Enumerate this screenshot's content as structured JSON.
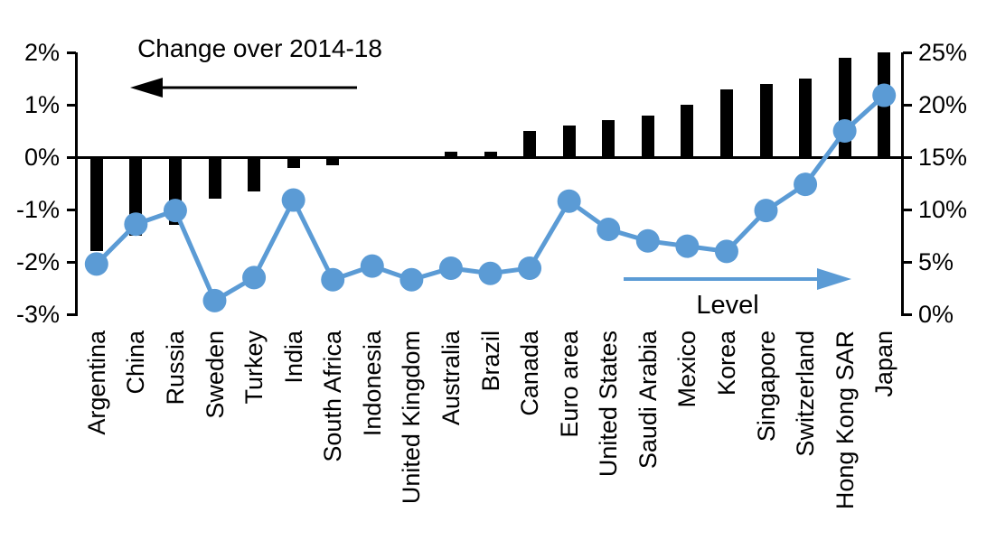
{
  "chart_data": {
    "type": "combo",
    "categories": [
      "Argentina",
      "China",
      "Russia",
      "Sweden",
      "Turkey",
      "India",
      "South Africa",
      "Indonesia",
      "United Kingdom",
      "Australia",
      "Brazil",
      "Canada",
      "Euro area",
      "United States",
      "Saudi Arabia",
      "Mexico",
      "Korea",
      "Singapore",
      "Switzerland",
      "Hong Kong SAR",
      "Japan"
    ],
    "series": [
      {
        "name": "Change over 2014-18",
        "type": "bar",
        "axis": "left",
        "color": "#000000",
        "unit": "percentage points",
        "values": [
          -1.8,
          -1.5,
          -1.3,
          -0.8,
          -0.65,
          -0.2,
          -0.15,
          0,
          0,
          0.1,
          0.1,
          0.5,
          0.6,
          0.7,
          0.8,
          1.0,
          1.3,
          1.4,
          1.5,
          1.9,
          2.0
        ]
      },
      {
        "name": "Level",
        "type": "line",
        "axis": "right",
        "color": "#5B9BD5",
        "unit": "percent",
        "values": [
          4.8,
          8.6,
          9.9,
          1.3,
          3.5,
          10.9,
          3.3,
          4.6,
          3.3,
          4.4,
          3.9,
          4.4,
          10.8,
          8.1,
          7.0,
          6.5,
          6.0,
          9.9,
          12.4,
          17.5,
          20.9
        ]
      }
    ],
    "left_axis": {
      "min": -3,
      "max": 2,
      "tick_values": [
        2,
        1,
        0,
        -1,
        -2,
        -3
      ],
      "tick_labels": [
        "2%",
        "1%",
        "0%",
        "-1%",
        "-2%",
        "-3%"
      ]
    },
    "right_axis": {
      "min": 0,
      "max": 25,
      "tick_values": [
        25,
        20,
        15,
        10,
        5,
        0
      ],
      "tick_labels": [
        "25%",
        "20%",
        "15%",
        "10%",
        "5%",
        "0%"
      ]
    },
    "annotations": {
      "change_label": "Change over 2014-18",
      "level_label": "Level"
    },
    "layout": {
      "grid": "off",
      "legend": "inline-annotations",
      "zero_line": "left-axis 0% spans plot width"
    },
    "colors": {
      "bar": "#000000",
      "line": "#5B9BD5",
      "axis": "#000000",
      "background": "#ffffff"
    }
  }
}
